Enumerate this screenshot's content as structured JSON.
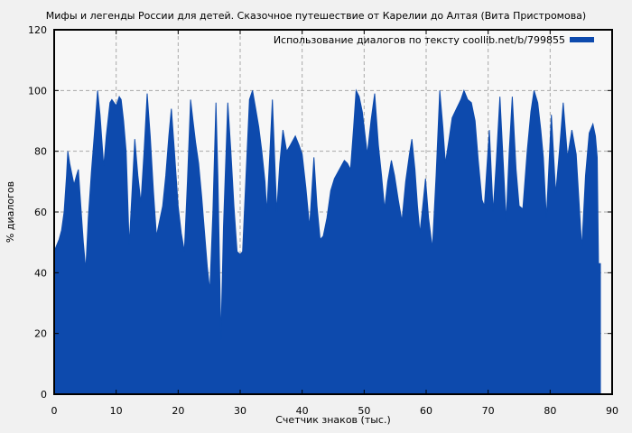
{
  "figure": {
    "background": "#f1f1f1",
    "plot_background": "#f7f7f7",
    "grid_color": "#a9a9a9",
    "border_color": "#000000",
    "accent_blue": "#0d4aad"
  },
  "chart_data": {
    "type": "area",
    "title": "Мифы и легенды России для детей. Сказочное путешествие от Карелии до Алтая (Вита Пристромова)",
    "xlabel": "Счетчик знаков (тыс.)",
    "ylabel": "% диалогов",
    "xlim": [
      0,
      90
    ],
    "ylim": [
      0,
      120
    ],
    "x_ticks": [
      0,
      10,
      20,
      30,
      40,
      50,
      60,
      70,
      80,
      90
    ],
    "y_ticks": [
      0,
      20,
      40,
      60,
      80,
      100,
      120
    ],
    "grid": true,
    "legend": {
      "label": "Использование диалогов по тексту coollib.net/b/799855",
      "position": "top-right",
      "swatch_color": "#0d4aad"
    },
    "series": [
      {
        "name": "Использование диалогов по тексту coollib.net/b/799855",
        "color": "#0d4aad",
        "points": [
          [
            0,
            47
          ],
          [
            0.4,
            49
          ],
          [
            0.8,
            51
          ],
          [
            1.2,
            54
          ],
          [
            1.6,
            60
          ],
          [
            2.0,
            72
          ],
          [
            2.2,
            80
          ],
          [
            2.5,
            76
          ],
          [
            3.0,
            71
          ],
          [
            3.2,
            69
          ],
          [
            3.6,
            72
          ],
          [
            3.9,
            74
          ],
          [
            4.3,
            62
          ],
          [
            4.7,
            50
          ],
          [
            5.1,
            41
          ],
          [
            5.5,
            58
          ],
          [
            6.0,
            73
          ],
          [
            6.5,
            86
          ],
          [
            7.0,
            100
          ],
          [
            7.4,
            92
          ],
          [
            8.0,
            75
          ],
          [
            8.4,
            85
          ],
          [
            9.0,
            96
          ],
          [
            9.3,
            97
          ],
          [
            10.0,
            95
          ],
          [
            10.5,
            98
          ],
          [
            10.8,
            97
          ],
          [
            11.2,
            90
          ],
          [
            11.6,
            80
          ],
          [
            12.1,
            49
          ],
          [
            12.6,
            68
          ],
          [
            13.0,
            84
          ],
          [
            13.5,
            72
          ],
          [
            14.0,
            63
          ],
          [
            14.5,
            80
          ],
          [
            15.0,
            99
          ],
          [
            15.5,
            85
          ],
          [
            16.0,
            67
          ],
          [
            16.5,
            52
          ],
          [
            17.0,
            57
          ],
          [
            17.5,
            62
          ],
          [
            18.0,
            72
          ],
          [
            18.5,
            85
          ],
          [
            18.9,
            94
          ],
          [
            19.4,
            80
          ],
          [
            20.0,
            62
          ],
          [
            20.5,
            53
          ],
          [
            21.0,
            47
          ],
          [
            21.5,
            70
          ],
          [
            22.0,
            97
          ],
          [
            22.4,
            90
          ],
          [
            22.8,
            83
          ],
          [
            23.3,
            76
          ],
          [
            23.8,
            65
          ],
          [
            24.3,
            52
          ],
          [
            24.7,
            42
          ],
          [
            25.1,
            34
          ],
          [
            25.6,
            60
          ],
          [
            26.1,
            96
          ],
          [
            26.4,
            72
          ],
          [
            26.9,
            18
          ],
          [
            27.3,
            55
          ],
          [
            28.0,
            96
          ],
          [
            28.5,
            80
          ],
          [
            29.0,
            62
          ],
          [
            29.5,
            47
          ],
          [
            30.0,
            46
          ],
          [
            30.4,
            47
          ],
          [
            30.9,
            70
          ],
          [
            31.5,
            97
          ],
          [
            32.0,
            100
          ],
          [
            32.5,
            94
          ],
          [
            33.0,
            88
          ],
          [
            33.5,
            80
          ],
          [
            34.0,
            70
          ],
          [
            34.3,
            60
          ],
          [
            34.8,
            80
          ],
          [
            35.2,
            97
          ],
          [
            35.9,
            60
          ],
          [
            36.4,
            76
          ],
          [
            36.9,
            87
          ],
          [
            37.5,
            80
          ],
          [
            38.1,
            82
          ],
          [
            38.9,
            85
          ],
          [
            39.5,
            82
          ],
          [
            40.0,
            79
          ],
          [
            40.6,
            68
          ],
          [
            41.2,
            55
          ],
          [
            41.9,
            78
          ],
          [
            42.4,
            62
          ],
          [
            42.9,
            51
          ],
          [
            43.4,
            52
          ],
          [
            44.0,
            58
          ],
          [
            44.6,
            67
          ],
          [
            45.2,
            71
          ],
          [
            46.0,
            74
          ],
          [
            46.8,
            77
          ],
          [
            47.3,
            76
          ],
          [
            47.8,
            74
          ],
          [
            48.3,
            88
          ],
          [
            48.7,
            100
          ],
          [
            49.2,
            98
          ],
          [
            49.7,
            93
          ],
          [
            50.0,
            88
          ],
          [
            50.5,
            79
          ],
          [
            51.1,
            90
          ],
          [
            51.7,
            99
          ],
          [
            52.3,
            82
          ],
          [
            52.8,
            72
          ],
          [
            53.3,
            61
          ],
          [
            53.8,
            70
          ],
          [
            54.4,
            77
          ],
          [
            54.9,
            72
          ],
          [
            55.5,
            64
          ],
          [
            56.1,
            57
          ],
          [
            56.7,
            70
          ],
          [
            57.3,
            79
          ],
          [
            57.7,
            84
          ],
          [
            58.2,
            74
          ],
          [
            58.6,
            62
          ],
          [
            59.0,
            53
          ],
          [
            59.5,
            63
          ],
          [
            59.9,
            71
          ],
          [
            60.4,
            58
          ],
          [
            61.0,
            48
          ],
          [
            61.6,
            72
          ],
          [
            62.2,
            100
          ],
          [
            62.7,
            88
          ],
          [
            63.1,
            76
          ],
          [
            63.7,
            84
          ],
          [
            64.2,
            91
          ],
          [
            64.9,
            94
          ],
          [
            65.6,
            97
          ],
          [
            66.1,
            100
          ],
          [
            66.7,
            97
          ],
          [
            67.3,
            96
          ],
          [
            67.9,
            90
          ],
          [
            68.4,
            77
          ],
          [
            69.0,
            64
          ],
          [
            69.4,
            62
          ],
          [
            70.2,
            87
          ],
          [
            70.8,
            60
          ],
          [
            71.3,
            76
          ],
          [
            71.9,
            98
          ],
          [
            72.4,
            78
          ],
          [
            72.9,
            57
          ],
          [
            73.4,
            80
          ],
          [
            73.9,
            98
          ],
          [
            74.5,
            74
          ],
          [
            75.0,
            62
          ],
          [
            75.6,
            61
          ],
          [
            76.3,
            80
          ],
          [
            76.9,
            93
          ],
          [
            77.4,
            100
          ],
          [
            78.0,
            96
          ],
          [
            78.5,
            87
          ],
          [
            78.9,
            78
          ],
          [
            79.4,
            58
          ],
          [
            80.2,
            92
          ],
          [
            80.9,
            66
          ],
          [
            81.5,
            80
          ],
          [
            82.1,
            96
          ],
          [
            82.8,
            78
          ],
          [
            83.5,
            87
          ],
          [
            84.2,
            79
          ],
          [
            85.1,
            48
          ],
          [
            85.7,
            72
          ],
          [
            86.3,
            86
          ],
          [
            86.9,
            89
          ],
          [
            87.3,
            85
          ],
          [
            87.6,
            78
          ],
          [
            87.8,
            43
          ],
          [
            88.1,
            43
          ]
        ]
      }
    ]
  }
}
